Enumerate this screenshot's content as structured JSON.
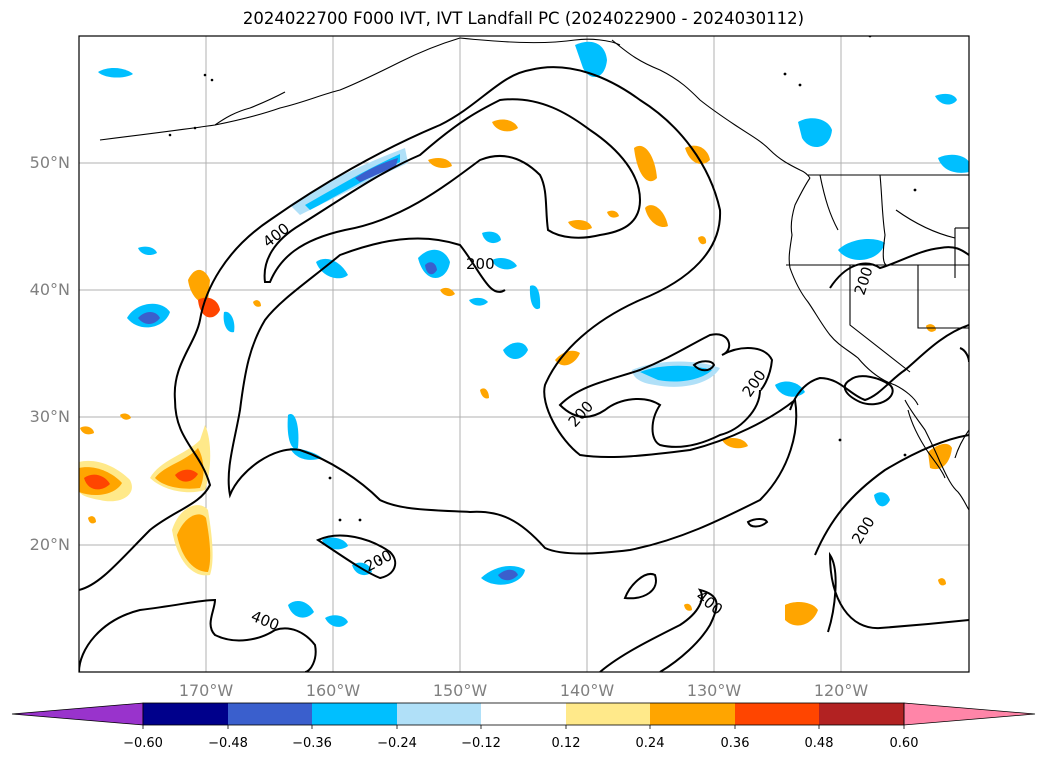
{
  "title": "2024022700 F000 IVT, IVT Landfall PC (2024022900 - 2024030112)",
  "lat_labels": [
    "50°N",
    "40°N",
    "30°N",
    "20°N"
  ],
  "lon_labels": [
    "170°W",
    "160°W",
    "150°W",
    "140°W",
    "130°W",
    "120°W"
  ],
  "contour_labels": [
    "400",
    "200",
    "200",
    "200",
    "200",
    "200",
    "400",
    "200",
    "400",
    "200"
  ],
  "colorbar": {
    "ticks": [
      "−0.60",
      "−0.48",
      "−0.36",
      "−0.24",
      "−0.12",
      "0.12",
      "0.24",
      "0.36",
      "0.48",
      "0.60"
    ],
    "colors": [
      "#9933cc",
      "#00008b",
      "#3a5fcd",
      "#00bfff",
      "#b0e0f8",
      "#ffffff",
      "#ffe98a",
      "#ffa500",
      "#ff4500",
      "#b22222",
      "#ff85a8"
    ]
  },
  "map_extent": {
    "lon": [
      -180,
      -110
    ],
    "lat": [
      10,
      60
    ]
  }
}
